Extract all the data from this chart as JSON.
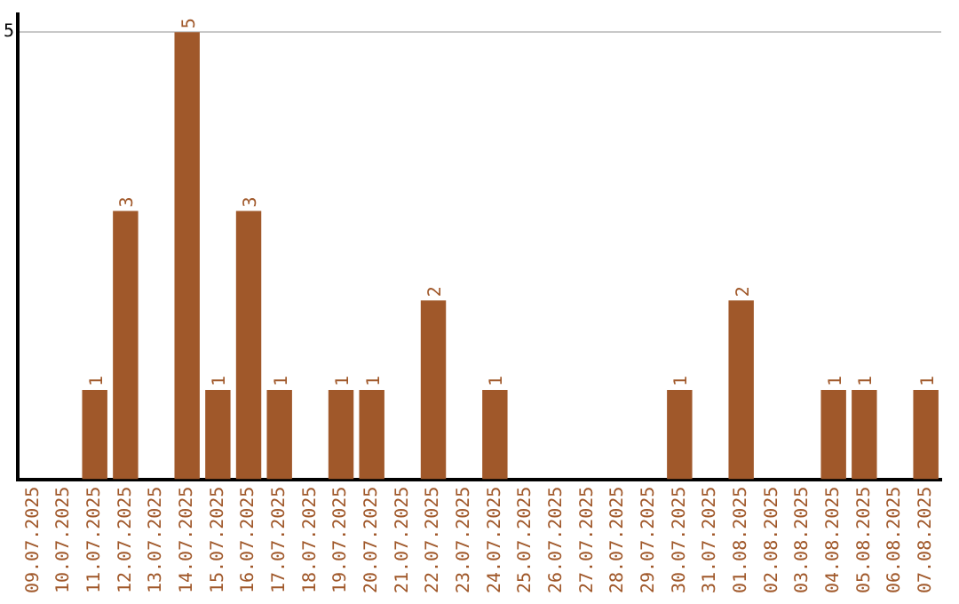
{
  "chart_data": {
    "type": "bar",
    "categories": [
      "09.07.2025",
      "10.07.2025",
      "11.07.2025",
      "12.07.2025",
      "13.07.2025",
      "14.07.2025",
      "15.07.2025",
      "16.07.2025",
      "17.07.2025",
      "18.07.2025",
      "19.07.2025",
      "20.07.2025",
      "21.07.2025",
      "22.07.2025",
      "23.07.2025",
      "24.07.2025",
      "25.07.2025",
      "26.07.2025",
      "27.07.2025",
      "28.07.2025",
      "29.07.2025",
      "30.07.2025",
      "31.07.2025",
      "01.08.2025",
      "02.08.2025",
      "03.08.2025",
      "04.08.2025",
      "05.08.2025",
      "06.08.2025",
      "07.08.2025"
    ],
    "values": [
      0,
      0,
      1,
      3,
      0,
      5,
      1,
      3,
      1,
      0,
      1,
      1,
      0,
      2,
      0,
      1,
      0,
      0,
      0,
      0,
      0,
      1,
      0,
      2,
      0,
      0,
      1,
      1,
      0,
      1
    ],
    "value_labels": [
      null,
      null,
      "1",
      "3",
      null,
      "5",
      "1",
      "3",
      "1",
      null,
      "1",
      "1",
      null,
      "2",
      null,
      "1",
      null,
      null,
      null,
      null,
      null,
      "1",
      null,
      "2",
      null,
      null,
      "1",
      "1",
      null,
      "1"
    ],
    "color": "#a0582a",
    "ylim": [
      0,
      5.2
    ],
    "yticks": [
      5
    ],
    "grid": "y",
    "legend": false
  }
}
